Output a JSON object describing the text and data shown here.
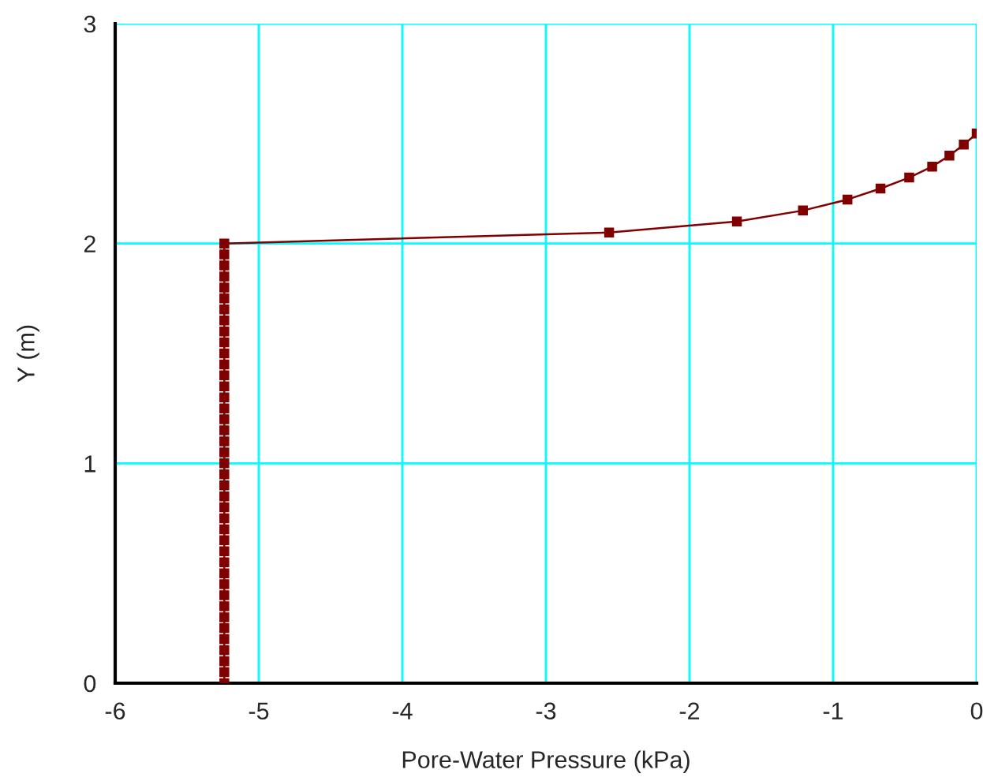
{
  "chart_data": {
    "type": "line",
    "xlabel": "Pore-Water Pressure (kPa)",
    "ylabel": "Y (m)",
    "series": [
      {
        "color": "#800000",
        "marker": "square",
        "x": [
          -5.24,
          -5.24,
          -5.24,
          -5.24,
          -5.24,
          -5.24,
          -5.24,
          -5.24,
          -5.24,
          -5.24,
          -5.24,
          -5.24,
          -5.24,
          -5.24,
          -5.24,
          -5.24,
          -5.24,
          -5.24,
          -5.24,
          -5.24,
          -5.24,
          -5.24,
          -5.24,
          -5.24,
          -5.24,
          -5.24,
          -5.24,
          -5.24,
          -5.24,
          -5.24,
          -5.24,
          -5.24,
          -5.24,
          -5.24,
          -5.24,
          -5.24,
          -5.24,
          -5.24,
          -5.24,
          -5.24,
          -5.24,
          -2.56,
          -1.67,
          -1.21,
          -0.9,
          -0.67,
          -0.47,
          -0.31,
          -0.19,
          -0.09,
          0
        ],
        "values": [
          0,
          0.05,
          0.1,
          0.15,
          0.2,
          0.25,
          0.3,
          0.35,
          0.4,
          0.45,
          0.5,
          0.55,
          0.6,
          0.65,
          0.7,
          0.75,
          0.8,
          0.85,
          0.9,
          0.95,
          1,
          1.05,
          1.1,
          1.15,
          1.2,
          1.25,
          1.3,
          1.35,
          1.4,
          1.45,
          1.5,
          1.55,
          1.6,
          1.65,
          1.7,
          1.75,
          1.8,
          1.85,
          1.9,
          1.95,
          2,
          2.05,
          2.1,
          2.15,
          2.2,
          2.25,
          2.3,
          2.35,
          2.4,
          2.45,
          2.5
        ]
      }
    ],
    "xlim": [
      -6,
      0
    ],
    "xticks": [
      -6,
      -5,
      -4,
      -3,
      -2,
      -1,
      0
    ],
    "ylim": [
      0,
      3
    ],
    "yticks": [
      0,
      1,
      2,
      3
    ],
    "grid": true
  }
}
